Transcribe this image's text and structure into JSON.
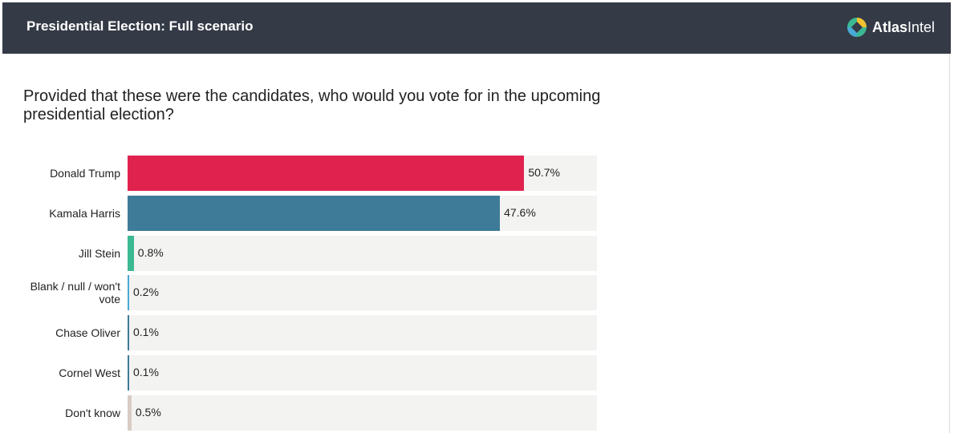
{
  "header": {
    "title": "Presidential Election: Full scenario",
    "logo_bold": "Atlas",
    "logo_light": "Intel"
  },
  "chart_data": {
    "type": "bar",
    "orientation": "horizontal",
    "title": "Provided that these were the candidates, who would you vote for in the upcoming presidential election?",
    "categories": [
      "Donald Trump",
      "Kamala Harris",
      "Jill Stein",
      "Blank / null / won't vote",
      "Chase Oliver",
      "Cornel West",
      "Don't know"
    ],
    "values": [
      50.7,
      47.6,
      0.8,
      0.2,
      0.1,
      0.1,
      0.5
    ],
    "value_labels": [
      "50.7%",
      "47.6%",
      "0.8%",
      "0.2%",
      "0.1%",
      "0.1%",
      "0.5%"
    ],
    "colors": [
      "#e0224f",
      "#3e7b99",
      "#3cb993",
      "#49a9d6",
      "#3e7b99",
      "#3e7b99",
      "#d9ccc5"
    ],
    "xlim": [
      0,
      60
    ]
  }
}
